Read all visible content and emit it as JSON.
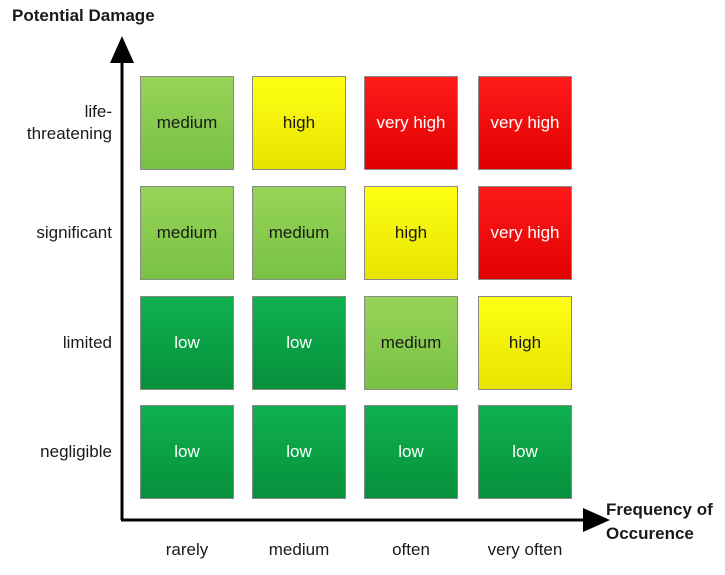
{
  "axes": {
    "y_title": "Potential Damage",
    "x_title_line1": "Frequency of",
    "x_title_line2": "Occurence"
  },
  "rows": [
    {
      "label_line1": "life-",
      "label_line2": "threatening",
      "cells": [
        "medium",
        "high",
        "very high",
        "very high"
      ]
    },
    {
      "label_line1": "significant",
      "label_line2": "",
      "cells": [
        "medium",
        "medium",
        "high",
        "very high"
      ]
    },
    {
      "label_line1": "limited",
      "label_line2": "",
      "cells": [
        "low",
        "low",
        "medium",
        "high"
      ]
    },
    {
      "label_line1": "negligible",
      "label_line2": "",
      "cells": [
        "low",
        "low",
        "low",
        "low"
      ]
    }
  ],
  "columns": [
    "rarely",
    "medium",
    "often",
    "very often"
  ],
  "colors": {
    "low": "#0fb14e",
    "medium": "#8ccf50",
    "high": "#ffff14",
    "very high": "#ff1a1a"
  }
}
